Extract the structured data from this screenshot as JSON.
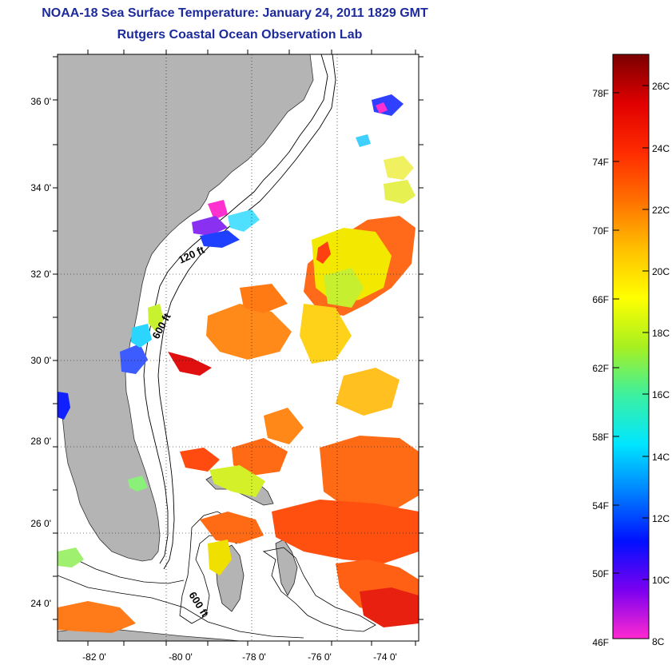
{
  "title": {
    "line1": "NOAA-18 Sea Surface Temperature:  January 24, 2011 1829 GMT",
    "line2": "Rutgers Coastal Ocean Observation Lab"
  },
  "map": {
    "lon_ticks": [
      "-82 0'",
      "-80 0'",
      "-78 0'",
      "-76 0'",
      "-74 0'"
    ],
    "lat_ticks": [
      "36 0'",
      "34 0'",
      "32 0'",
      "30 0'",
      "28 0'",
      "26 0'",
      "24 0'"
    ],
    "contour_labels": [
      "120 ft",
      "600 ft",
      "600 ft"
    ],
    "colors": {
      "land": "#b4b4b4",
      "ocean_no_data": "#ffffff",
      "grid": "#000000"
    }
  },
  "colorbar": {
    "fahrenheit_ticks": [
      "78F",
      "74F",
      "70F",
      "66F",
      "62F",
      "58F",
      "54F",
      "50F",
      "46F"
    ],
    "celsius_ticks": [
      "26C",
      "24C",
      "22C",
      "20C",
      "18C",
      "16C",
      "14C",
      "12C",
      "10C",
      "8C"
    ],
    "colors": [
      "#ff29d0",
      "#7a00f0",
      "#0010ff",
      "#0080ff",
      "#00e6ff",
      "#3cf0a0",
      "#a8f020",
      "#ffff00",
      "#ffc000",
      "#ff7000",
      "#ff2a00",
      "#e00000",
      "#7a0000"
    ]
  }
}
